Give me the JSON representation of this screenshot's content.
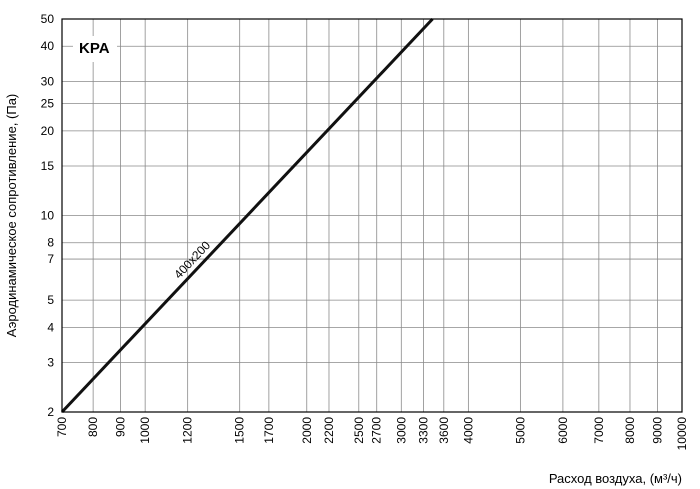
{
  "chart_data": {
    "type": "line",
    "title": "KPA",
    "xlabel": "Расход воздуха, (м³/ч)",
    "ylabel": "Аэродинамическое сопротивление, (Па)",
    "x_scale": "log",
    "y_scale": "log",
    "xlim": [
      700,
      10000
    ],
    "ylim": [
      2,
      50
    ],
    "grid": true,
    "x_ticks": [
      "700",
      "800",
      "900",
      "1000",
      "1200",
      "1500",
      "1700",
      "2000",
      "2200",
      "2500",
      "2700",
      "3000",
      "3300",
      "3600",
      "4000",
      "5000",
      "6000",
      "7000",
      "8000",
      "9000",
      "10000"
    ],
    "y_ticks": [
      "2",
      "3",
      "4",
      "5",
      "7",
      "8",
      "10",
      "15",
      "20",
      "25",
      "30",
      "40",
      "50"
    ],
    "series": [
      {
        "name": "400x200",
        "x": [
          700,
          3430
        ],
        "y": [
          2,
          50
        ]
      }
    ]
  },
  "colors": {
    "grid": "#8a8a8a",
    "line": "#111111",
    "frame": "#000000",
    "tag_bg": "#ffffff"
  }
}
